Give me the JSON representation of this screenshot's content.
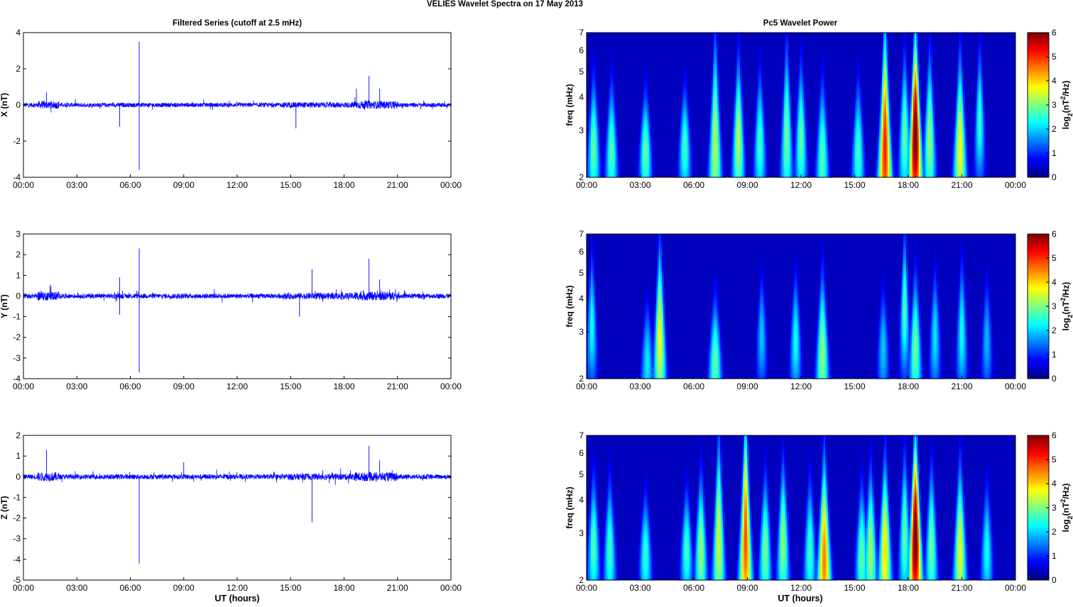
{
  "page_title": "VELIES Wavelet Spectra on 17 May       2013",
  "left_column_title": "Filtered Series (cutoff at 2.5 mHz)",
  "right_column_title": "Pc5 Wavelet Power",
  "x_ticks": [
    "00:00",
    "03:00",
    "06:00",
    "09:00",
    "12:00",
    "15:00",
    "18:00",
    "21:00",
    "00:00"
  ],
  "x_label": "UT (hours)",
  "colors": {
    "trace": "#0000ff",
    "background": "#00008f",
    "axis": "#000000"
  },
  "chart_data": [
    {
      "type": "line",
      "title": "Filtered Series (cutoff at 2.5 mHz)",
      "ylabel": "X (nT)",
      "ylim": [
        -4,
        4
      ],
      "yticks": [
        "4",
        "2",
        "0",
        "-2",
        "-4"
      ],
      "yvals": [
        4,
        2,
        0,
        -2,
        -4
      ],
      "x_range_hours": [
        0,
        24
      ],
      "noise_amplitude": 0.12,
      "bursts": [
        [
          1.3,
          0.7
        ],
        [
          6.5,
          3.5
        ],
        [
          6.5,
          -3.6
        ],
        [
          5.4,
          -1.2
        ],
        [
          15.3,
          -1.3
        ],
        [
          18.7,
          0.9
        ],
        [
          19.4,
          1.6
        ],
        [
          20.0,
          0.9
        ]
      ]
    },
    {
      "type": "line",
      "title": "",
      "ylabel": "Y (nT)",
      "ylim": [
        -4,
        3
      ],
      "yticks": [
        "3",
        "2",
        "1",
        "0",
        "-1",
        "-2",
        "-3",
        "-4"
      ],
      "yvals": [
        3,
        2,
        1,
        0,
        -1,
        -2,
        -3,
        -4
      ],
      "x_range_hours": [
        0,
        24
      ],
      "noise_amplitude": 0.12,
      "bursts": [
        [
          6.5,
          2.3
        ],
        [
          6.5,
          -3.7
        ],
        [
          5.4,
          0.9
        ],
        [
          5.4,
          -0.9
        ],
        [
          16.2,
          1.3
        ],
        [
          15.5,
          -1.0
        ],
        [
          19.4,
          1.8
        ],
        [
          20.0,
          0.8
        ]
      ]
    },
    {
      "type": "line",
      "title": "",
      "ylabel": "Z (nT)",
      "ylim": [
        -5,
        2
      ],
      "yticks": [
        "2",
        "1",
        "0",
        "-1",
        "-2",
        "-3",
        "-4",
        "-5"
      ],
      "yvals": [
        2,
        1,
        0,
        -1,
        -2,
        -3,
        -4,
        -5
      ],
      "x_range_hours": [
        0,
        24
      ],
      "noise_amplitude": 0.12,
      "bursts": [
        [
          1.3,
          1.3
        ],
        [
          6.5,
          -4.2
        ],
        [
          16.2,
          -2.2
        ],
        [
          19.4,
          1.5
        ],
        [
          20.0,
          0.8
        ],
        [
          9.0,
          0.7
        ]
      ]
    },
    {
      "type": "heatmap",
      "title": "Pc5 Wavelet Power",
      "ylabel": "freq (mHz)",
      "y_scale": "log",
      "ylim": [
        2,
        7
      ],
      "yticks": [
        "7",
        "6",
        "5",
        "4",
        "3",
        "2"
      ],
      "yvals": [
        7,
        6,
        5,
        4,
        3,
        2
      ],
      "x_range_hours": [
        0,
        24
      ],
      "colorbar": {
        "label_base": "log",
        "label_sub": "2",
        "label_mid": "(nT",
        "label_sup": "2",
        "label_end": "/Hz)",
        "ticks": [
          "6",
          "5",
          "4",
          "3",
          "2",
          "1",
          "0"
        ],
        "range": [
          0,
          6
        ]
      },
      "blobs": [
        [
          0.4,
          2.6,
          2.5,
          0.8
        ],
        [
          1.4,
          2.5,
          2.4,
          0.8
        ],
        [
          3.3,
          2.5,
          2.5,
          0.6
        ],
        [
          5.5,
          2.6,
          2.3,
          0.6
        ],
        [
          7.2,
          2.7,
          3.0,
          1.5
        ],
        [
          8.5,
          2.8,
          3.0,
          1.0
        ],
        [
          9.7,
          2.7,
          2.3,
          0.8
        ],
        [
          11.2,
          2.9,
          2.6,
          1.2
        ],
        [
          12.0,
          2.8,
          2.5,
          0.9
        ],
        [
          13.2,
          2.4,
          2.4,
          0.9
        ],
        [
          15.2,
          2.5,
          2.3,
          0.8
        ],
        [
          16.7,
          2.6,
          4.8,
          1.8
        ],
        [
          18.4,
          2.9,
          6.0,
          1.4
        ],
        [
          17.8,
          2.9,
          2.5,
          1.0
        ],
        [
          19.2,
          2.8,
          2.8,
          1.1
        ],
        [
          20.9,
          2.6,
          3.4,
          1.2
        ],
        [
          22.0,
          3.3,
          2.2,
          0.8
        ]
      ]
    },
    {
      "type": "heatmap",
      "title": "",
      "ylabel": "freq (mHz)",
      "y_scale": "log",
      "ylim": [
        2,
        7
      ],
      "yticks": [
        "7",
        "6",
        "5",
        "4",
        "3",
        "2"
      ],
      "yvals": [
        7,
        6,
        5,
        4,
        3,
        2
      ],
      "x_range_hours": [
        0,
        24
      ],
      "colorbar": {
        "label_base": "log",
        "label_sub": "2",
        "label_mid": "(nT",
        "label_sup": "2",
        "label_end": "/Hz)",
        "ticks": [
          "6",
          "5",
          "4",
          "3",
          "2",
          "1",
          "0"
        ],
        "range": [
          0,
          6
        ]
      },
      "blobs": [
        [
          0.3,
          3.2,
          2.0,
          0.8
        ],
        [
          3.4,
          2.3,
          1.8,
          0.6
        ],
        [
          4.1,
          2.9,
          3.4,
          1.2
        ],
        [
          7.2,
          2.3,
          2.5,
          0.7
        ],
        [
          9.8,
          2.9,
          1.6,
          0.6
        ],
        [
          11.7,
          2.8,
          2.0,
          0.7
        ],
        [
          13.2,
          2.5,
          2.8,
          1.0
        ],
        [
          16.6,
          2.6,
          1.6,
          0.6
        ],
        [
          17.8,
          3.7,
          2.4,
          0.9
        ],
        [
          18.4,
          2.6,
          2.6,
          0.9
        ],
        [
          19.5,
          2.9,
          1.8,
          0.7
        ],
        [
          21.0,
          3.0,
          2.0,
          0.8
        ],
        [
          22.4,
          2.8,
          1.5,
          0.6
        ]
      ]
    },
    {
      "type": "heatmap",
      "title": "",
      "ylabel": "freq (mHz)",
      "y_scale": "log",
      "ylim": [
        2,
        7
      ],
      "yticks": [
        "7",
        "6",
        "5",
        "4",
        "3",
        "2"
      ],
      "yvals": [
        7,
        6,
        5,
        4,
        3,
        2
      ],
      "x_range_hours": [
        0,
        24
      ],
      "colorbar": {
        "label_base": "log",
        "label_sub": "2",
        "label_mid": "(nT",
        "label_sup": "2",
        "label_end": "/Hz)",
        "ticks": [
          "6",
          "5",
          "4",
          "3",
          "2",
          "1",
          "0"
        ],
        "range": [
          0,
          6
        ]
      },
      "blobs": [
        [
          0.4,
          2.7,
          2.4,
          0.8
        ],
        [
          1.3,
          2.6,
          2.3,
          0.8
        ],
        [
          3.3,
          2.5,
          2.2,
          0.6
        ],
        [
          5.6,
          2.6,
          2.3,
          0.6
        ],
        [
          6.4,
          2.6,
          2.8,
          0.9
        ],
        [
          7.4,
          2.9,
          3.2,
          1.4
        ],
        [
          8.9,
          2.9,
          4.5,
          1.8
        ],
        [
          10.0,
          2.6,
          2.6,
          0.9
        ],
        [
          11.0,
          2.8,
          2.8,
          1.0
        ],
        [
          12.5,
          2.6,
          2.3,
          0.8
        ],
        [
          13.3,
          2.4,
          4.2,
          1.4
        ],
        [
          15.4,
          2.5,
          2.5,
          0.8
        ],
        [
          15.9,
          2.6,
          2.9,
          1.0
        ],
        [
          16.7,
          2.6,
          3.6,
          1.2
        ],
        [
          18.4,
          2.9,
          6.0,
          1.4
        ],
        [
          17.8,
          3.0,
          2.5,
          1.0
        ],
        [
          19.3,
          2.7,
          2.6,
          1.0
        ],
        [
          20.9,
          2.6,
          3.3,
          1.1
        ],
        [
          22.4,
          2.6,
          2.0,
          0.7
        ]
      ]
    }
  ]
}
